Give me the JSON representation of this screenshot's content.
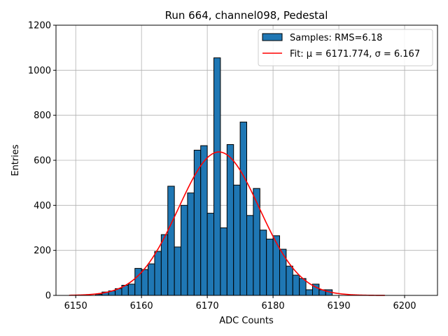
{
  "chart_data": {
    "type": "bar",
    "title": "Run 664, channel098, Pedestal",
    "xlabel": "ADC Counts",
    "ylabel": "Entries",
    "xlim": [
      6147,
      6205
    ],
    "ylim": [
      0,
      1200
    ],
    "xticks": [
      6150,
      6160,
      6170,
      6180,
      6190,
      6200
    ],
    "yticks": [
      0,
      200,
      400,
      600,
      800,
      1000,
      1200
    ],
    "grid": true,
    "legend_location": "top-right",
    "colors": {
      "bars": "#1f77b4",
      "fit": "#ff0000"
    },
    "histogram": {
      "name": "Samples: RMS=6.18",
      "bin_edges": [
        6153.0,
        6154.0,
        6155.0,
        6156.0,
        6157.0,
        6158.0,
        6159.0,
        6160.0,
        6161.0,
        6162.0,
        6163.0,
        6164.0,
        6165.0,
        6166.0,
        6167.0,
        6168.0,
        6169.0,
        6170.0,
        6171.0,
        6172.0,
        6173.0,
        6174.0,
        6175.0,
        6176.0,
        6177.0,
        6178.0,
        6179.0,
        6180.0,
        6181.0,
        6182.0,
        6183.0,
        6184.0,
        6185.0,
        6186.0,
        6187.0,
        6188.0,
        6189.0
      ],
      "counts": [
        5,
        15,
        20,
        30,
        45,
        50,
        120,
        115,
        140,
        195,
        270,
        485,
        215,
        400,
        455,
        645,
        665,
        365,
        1055,
        300,
        670,
        490,
        770,
        355,
        475,
        290,
        250,
        265,
        205,
        130,
        90,
        75,
        25,
        50,
        25,
        25
      ]
    },
    "fit": {
      "name": "Fit: μ = 6171.774, σ = 6.167",
      "mu": 6171.774,
      "sigma": 6.167,
      "amplitude": 637,
      "x_range": [
        6149,
        6197
      ]
    }
  }
}
